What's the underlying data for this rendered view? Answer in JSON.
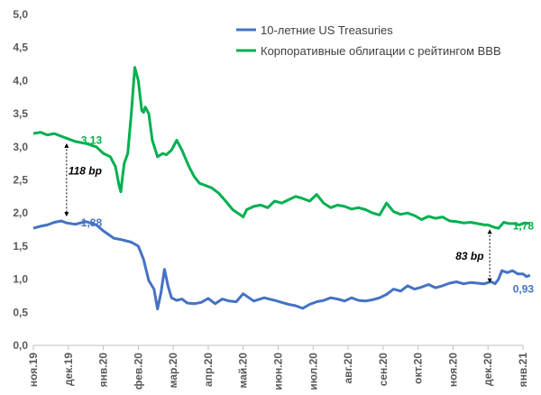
{
  "chart_data": {
    "type": "line",
    "title": "",
    "xlabel": "",
    "ylabel": "",
    "ylim": [
      0,
      5
    ],
    "yticks": [
      "0,0",
      "0,5",
      "1,0",
      "1,5",
      "2,0",
      "2,5",
      "3,0",
      "3,5",
      "4,0",
      "4,5",
      "5,0"
    ],
    "xticks": [
      "ноя.19",
      "дек.19",
      "янв.20",
      "фев.20",
      "мар.20",
      "апр.20",
      "май.20",
      "июн.20",
      "июл.20",
      "авг.20",
      "сен.20",
      "окт.20",
      "ноя.20",
      "дек.20",
      "янв.21"
    ],
    "grid": false,
    "legend_position": "top-right",
    "series": [
      {
        "name": "10-летние US Treasuries",
        "color": "#4472C4",
        "x": [
          0,
          0.2,
          0.4,
          0.6,
          0.8,
          0.95,
          1.2,
          1.5,
          1.8,
          2.0,
          2.3,
          2.5,
          2.8,
          3.0,
          3.15,
          3.3,
          3.45,
          3.55,
          3.65,
          3.75,
          3.85,
          3.95,
          4.1,
          4.25,
          4.4,
          4.6,
          4.8,
          5.0,
          5.2,
          5.4,
          5.6,
          5.8,
          6.0,
          6.3,
          6.6,
          6.9,
          7.1,
          7.3,
          7.5,
          7.7,
          7.9,
          8.1,
          8.3,
          8.5,
          8.7,
          8.9,
          9.1,
          9.3,
          9.5,
          9.7,
          9.9,
          10.1,
          10.3,
          10.5,
          10.7,
          10.9,
          11.1,
          11.3,
          11.5,
          11.7,
          11.9,
          12.1,
          12.3,
          12.5,
          12.7,
          12.9,
          13.0,
          13.1,
          13.2,
          13.3,
          13.4,
          13.55,
          13.7,
          13.85,
          14.0,
          14.1,
          14.2
        ],
        "values": [
          1.77,
          1.8,
          1.82,
          1.86,
          1.88,
          1.85,
          1.83,
          1.87,
          1.82,
          1.73,
          1.62,
          1.6,
          1.56,
          1.5,
          1.3,
          0.98,
          0.85,
          0.55,
          0.8,
          1.15,
          0.9,
          0.72,
          0.68,
          0.7,
          0.64,
          0.63,
          0.65,
          0.71,
          0.63,
          0.7,
          0.67,
          0.66,
          0.78,
          0.67,
          0.72,
          0.68,
          0.65,
          0.62,
          0.6,
          0.56,
          0.62,
          0.66,
          0.68,
          0.72,
          0.7,
          0.67,
          0.72,
          0.68,
          0.67,
          0.69,
          0.72,
          0.77,
          0.85,
          0.82,
          0.9,
          0.85,
          0.88,
          0.92,
          0.87,
          0.9,
          0.94,
          0.96,
          0.93,
          0.95,
          0.94,
          0.93,
          0.95,
          0.96,
          0.93,
          1.0,
          1.13,
          1.1,
          1.13,
          1.08,
          1.08,
          1.04,
          1.06
        ]
      },
      {
        "name": "Корпоративные облигации с рейтингом BBB",
        "color": "#00B050",
        "x": [
          0,
          0.2,
          0.4,
          0.6,
          0.8,
          0.95,
          1.2,
          1.5,
          1.8,
          2.0,
          2.2,
          2.35,
          2.45,
          2.5,
          2.55,
          2.6,
          2.7,
          2.8,
          2.9,
          3.0,
          3.1,
          3.15,
          3.2,
          3.3,
          3.4,
          3.55,
          3.7,
          3.8,
          3.95,
          4.1,
          4.25,
          4.45,
          4.6,
          4.75,
          4.9,
          5.1,
          5.3,
          5.5,
          5.7,
          5.9,
          6.0,
          6.1,
          6.3,
          6.5,
          6.7,
          6.9,
          7.1,
          7.3,
          7.5,
          7.7,
          7.9,
          8.1,
          8.3,
          8.5,
          8.7,
          8.9,
          9.1,
          9.3,
          9.5,
          9.7,
          9.9,
          10.1,
          10.3,
          10.5,
          10.7,
          10.9,
          11.1,
          11.3,
          11.5,
          11.7,
          11.9,
          12.1,
          12.3,
          12.5,
          12.7,
          12.9,
          13.0,
          13.1,
          13.2,
          13.3,
          13.45,
          13.6,
          13.75,
          13.9,
          14.05,
          14.2
        ],
        "values": [
          3.2,
          3.22,
          3.18,
          3.2,
          3.16,
          3.13,
          3.08,
          3.05,
          3.0,
          2.9,
          2.85,
          2.7,
          2.42,
          2.32,
          2.55,
          2.75,
          2.9,
          3.5,
          4.2,
          4.0,
          3.55,
          3.52,
          3.6,
          3.5,
          3.1,
          2.85,
          2.9,
          2.88,
          2.95,
          3.1,
          2.95,
          2.7,
          2.55,
          2.45,
          2.42,
          2.38,
          2.3,
          2.18,
          2.05,
          1.98,
          1.94,
          2.05,
          2.1,
          2.12,
          2.08,
          2.18,
          2.15,
          2.2,
          2.25,
          2.22,
          2.18,
          2.28,
          2.15,
          2.08,
          2.12,
          2.1,
          2.06,
          2.08,
          2.05,
          2.0,
          1.97,
          2.15,
          2.02,
          1.98,
          2.0,
          1.96,
          1.9,
          1.95,
          1.92,
          1.94,
          1.88,
          1.87,
          1.85,
          1.86,
          1.84,
          1.82,
          1.82,
          1.8,
          1.78,
          1.77,
          1.86,
          1.84,
          1.84,
          1.82,
          1.85,
          1.84
        ]
      }
    ],
    "annotations": [
      {
        "text": "3,13",
        "color": "#00B050"
      },
      {
        "text": "1,88",
        "color": "#4472C4"
      },
      {
        "text": "1,78",
        "color": "#00B050"
      },
      {
        "text": "0,93",
        "color": "#4472C4"
      },
      {
        "text": "118 bp",
        "color": "#000000"
      },
      {
        "text": "83 bp",
        "color": "#000000"
      }
    ]
  }
}
